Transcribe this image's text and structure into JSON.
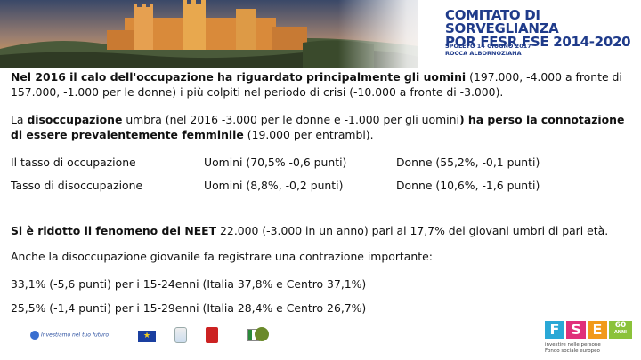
{
  "banner": {
    "title_line1": "COMITATO DI SORVEGLIANZA",
    "title_line2": "POR FESR FSE 2014-2020",
    "subtitle_line1": "SPOLETO 14 GIUGNO 2017",
    "subtitle_line2": "ROCCA ALBORNOZIANA"
  },
  "p1": {
    "a": "Nel 2016 il calo dell'occupazione ha riguardato principalmente gli uomini",
    "b": " (197.000, -4.000 a fronte di 157.000, -1.000 per le donne) i più colpiti nel periodo di crisi (-10.000 a fronte di -3.000)."
  },
  "p2": {
    "a": "La ",
    "b": "disoccupazione",
    "c": " umbra (nel 2016 -3.000 per le donne e -1.000 per gli uomini",
    "d": ") ha perso la connotazione di essere prevalentemente femminile",
    "e": " (19.000 per entrambi)."
  },
  "rows": [
    {
      "label": "Il tasso di occupazione",
      "uomini": "Uomini (70,5% -0,6 punti)",
      "donne": "Donne (55,2%, -0,1 punti)"
    },
    {
      "label": "Tasso di disoccupazione",
      "uomini": "Uomini (8,8%, -0,2 punti)",
      "donne": "Donne (10,6%, -1,6 punti)"
    }
  ],
  "p3": {
    "a": "Si è ridotto il fenomeno dei NEET",
    "b": " 22.000 (-3.000 in un anno) pari al  17,7% dei giovani umbri di pari età."
  },
  "p4": "Anche la disoccupazione giovanile fa registrare una contrazione importante:",
  "p5": "33,1% (-5,6 punti)  per i 15-24enni (Italia 37,8% e Centro 37,1%)",
  "p6": "25,5% (-1,4 punti) per i 15-29enni (Italia 28,4% e Centro 26,7%)",
  "footer": {
    "investiamo": "Investiamo nel tuo futuro",
    "fse_letters": [
      "F",
      "S",
      "E"
    ],
    "fse_years": "60",
    "fse_years_label": "ANNI",
    "fse_sub1": "investire nelle persone",
    "fse_sub2": "Fondo sociale europeo"
  }
}
